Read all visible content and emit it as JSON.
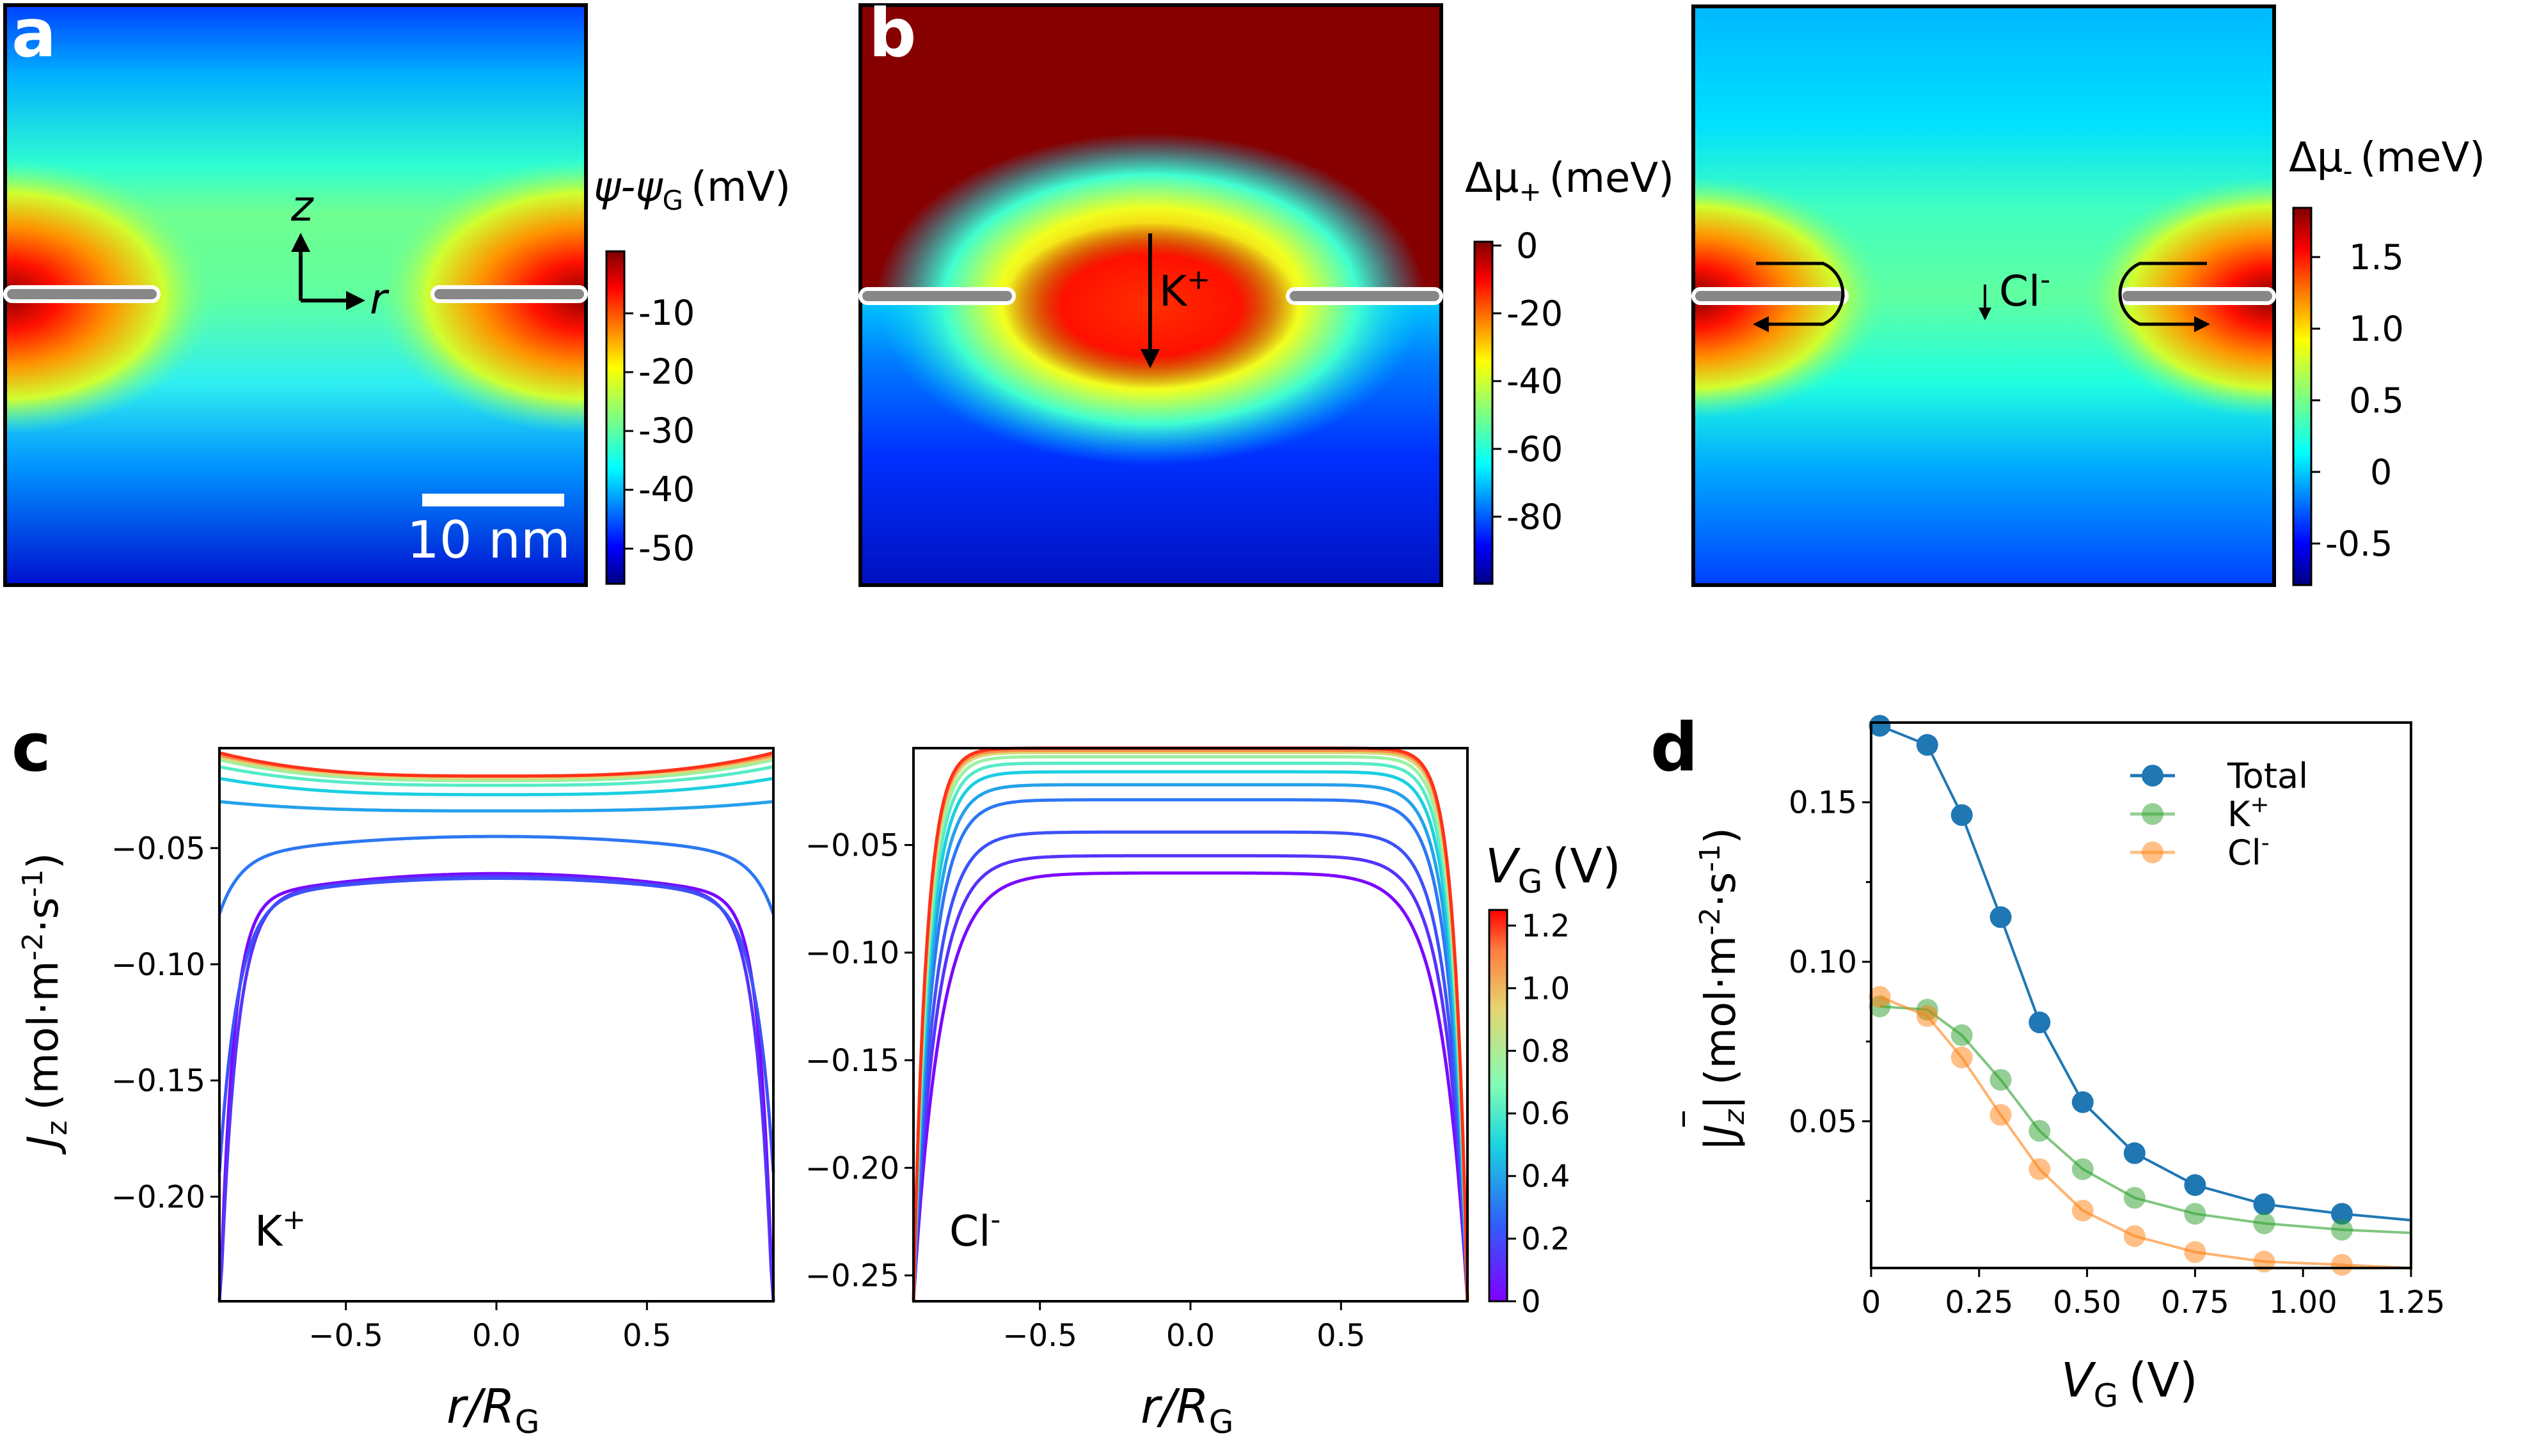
{
  "panels": {
    "a": {
      "letter": "a",
      "cbar_label": "ψ-ψ",
      "cbar_label_sub": "G",
      "cbar_unit": "(mV)",
      "cbar_ticks": [
        "-10",
        "-20",
        "-30",
        "-40",
        "-50"
      ],
      "axis_z": "z",
      "axis_r": "r",
      "scalebar": "10 nm"
    },
    "b": {
      "letter": "b",
      "cbar_label": "Δμ",
      "cbar_label_sub": "+",
      "cbar_unit": "(meV)",
      "cbar_ticks": [
        "0",
        "-20",
        "-40",
        "-60",
        "-80"
      ],
      "ion": "K",
      "ion_sup": "+"
    },
    "b2": {
      "cbar_label": "Δμ",
      "cbar_label_sub": "-",
      "cbar_unit": "(meV)",
      "cbar_ticks": [
        "1.5",
        "1.0",
        "0.5",
        "0",
        "-0.5"
      ],
      "ion": "Cl",
      "ion_sup": "-"
    },
    "c": {
      "letter": "c"
    },
    "d": {
      "letter": "d"
    }
  },
  "colors": {
    "jet": [
      "#00007f",
      "#0000ff",
      "#007fff",
      "#00ffff",
      "#7fff7f",
      "#ffff00",
      "#ff7f00",
      "#ff0000",
      "#7f0000"
    ],
    "total": "#1f77b4",
    "kplus": "#2ca02c",
    "clminus": "#ff7f0e"
  },
  "chart_data": [
    {
      "type": "line",
      "panel": "c-left",
      "annotation": "K",
      "annotation_sup": "+",
      "xlabel": "r/R",
      "xlabel_sub": "G",
      "ylabel": "J",
      "ylabel_sub": "z",
      "ylabel_unit": "(mol·m",
      "xlim": [
        -0.92,
        0.92
      ],
      "ylim": [
        -0.245,
        -0.007
      ],
      "xticks": [
        -0.5,
        0.0,
        0.5
      ],
      "xtick_labels": [
        "−0.5",
        "0.0",
        "0.5"
      ],
      "yticks": [
        -0.05,
        -0.1,
        -0.15,
        -0.2
      ],
      "ytick_labels": [
        "−0.05",
        "−0.10",
        "−0.15",
        "−0.20"
      ],
      "curve_shape": "symmetric profile flat in the centre, diverging toward the walls at r/R_G = ±0.92",
      "series": [
        {
          "vg": 0.02,
          "center": -0.061,
          "edge": -0.245
        },
        {
          "vg": 0.13,
          "center": -0.062,
          "edge": -0.245
        },
        {
          "vg": 0.21,
          "center": -0.063,
          "edge": -0.18
        },
        {
          "vg": 0.3,
          "center": -0.045,
          "edge": -0.07
        },
        {
          "vg": 0.39,
          "center": -0.034,
          "edge": -0.03
        },
        {
          "vg": 0.49,
          "center": -0.027,
          "edge": -0.02
        },
        {
          "vg": 0.61,
          "center": -0.023,
          "edge": -0.015
        },
        {
          "vg": 0.75,
          "center": -0.021,
          "edge": -0.012
        },
        {
          "vg": 0.91,
          "center": -0.02,
          "edge": -0.011
        },
        {
          "vg": 1.09,
          "center": -0.019,
          "edge": -0.01
        },
        {
          "vg": 1.2,
          "center": -0.019,
          "edge": -0.009
        }
      ]
    },
    {
      "type": "line",
      "panel": "c-right",
      "annotation": "Cl",
      "annotation_sup": "-",
      "xlabel": "r/R",
      "xlabel_sub": "G",
      "xlim": [
        -0.92,
        0.92
      ],
      "ylim": [
        -0.262,
        -0.005
      ],
      "xticks": [
        -0.5,
        0.0,
        0.5
      ],
      "xtick_labels": [
        "−0.5",
        "0.0",
        "0.5"
      ],
      "yticks": [
        -0.05,
        -0.1,
        -0.15,
        -0.2,
        -0.25
      ],
      "ytick_labels": [
        "−0.05",
        "−0.10",
        "−0.15",
        "−0.20",
        "−0.25"
      ],
      "colorbar": {
        "label": "V",
        "label_sub": "G",
        "unit": "(V)",
        "range": [
          0,
          1.25
        ],
        "ticks": [
          "1.2",
          "1.0",
          "0.8",
          "0.6",
          "0.4",
          "0.2",
          "0"
        ],
        "tick_values": [
          1.2,
          1.0,
          0.8,
          0.6,
          0.4,
          0.2,
          0
        ]
      },
      "series": [
        {
          "vg": 0.02,
          "center": -0.063
        },
        {
          "vg": 0.13,
          "center": -0.055
        },
        {
          "vg": 0.21,
          "center": -0.044
        },
        {
          "vg": 0.3,
          "center": -0.029
        },
        {
          "vg": 0.39,
          "center": -0.022
        },
        {
          "vg": 0.49,
          "center": -0.016
        },
        {
          "vg": 0.61,
          "center": -0.012
        },
        {
          "vg": 0.75,
          "center": -0.009
        },
        {
          "vg": 0.91,
          "center": -0.007
        },
        {
          "vg": 1.09,
          "center": -0.006
        },
        {
          "vg": 1.2,
          "center": -0.005
        }
      ]
    },
    {
      "type": "line",
      "panel": "d",
      "xlabel": "V",
      "xlabel_sub": "G",
      "xlabel_unit": "(V)",
      "ylabel": "|J",
      "ylabel_sub": "z",
      "ylabel_unit": "(mol·m",
      "xlim": [
        0,
        1.25
      ],
      "ylim": [
        0.004,
        0.175
      ],
      "xticks": [
        0,
        0.25,
        0.5,
        0.75,
        1.0,
        1.25
      ],
      "xtick_labels": [
        "0",
        "0.25",
        "0.50",
        "0.75",
        "1.00",
        "1.25"
      ],
      "yticks": [
        0.05,
        0.1,
        0.15
      ],
      "ytick_labels": [
        "0.05",
        "0.10",
        "0.15"
      ],
      "legend": "top-right",
      "series": [
        {
          "name": "Total",
          "x": [
            0.02,
            0.13,
            0.21,
            0.3,
            0.39,
            0.49,
            0.61,
            0.75,
            0.91,
            1.09
          ],
          "y": [
            0.174,
            0.168,
            0.146,
            0.114,
            0.081,
            0.056,
            0.04,
            0.03,
            0.024,
            0.021
          ],
          "end_y": 0.019
        },
        {
          "name": "K",
          "name_sup": "+",
          "x": [
            0.02,
            0.13,
            0.21,
            0.3,
            0.39,
            0.49,
            0.61,
            0.75,
            0.91,
            1.09
          ],
          "y": [
            0.086,
            0.085,
            0.077,
            0.063,
            0.047,
            0.035,
            0.026,
            0.021,
            0.018,
            0.016
          ],
          "end_y": 0.015
        },
        {
          "name": "Cl",
          "name_sup": "-",
          "x": [
            0.02,
            0.13,
            0.21,
            0.3,
            0.39,
            0.49,
            0.61,
            0.75,
            0.91,
            1.09
          ],
          "y": [
            0.089,
            0.083,
            0.07,
            0.052,
            0.035,
            0.022,
            0.014,
            0.009,
            0.006,
            0.005
          ],
          "end_y": 0.004
        }
      ]
    }
  ]
}
